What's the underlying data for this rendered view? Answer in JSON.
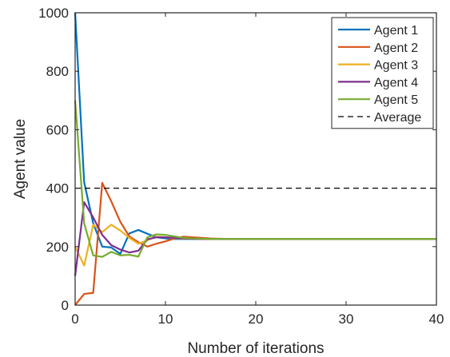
{
  "chart_data": {
    "type": "line",
    "title": "",
    "xlabel": "Number of iterations",
    "ylabel": "Agent value",
    "xlim": [
      0,
      40
    ],
    "ylim": [
      0,
      1000
    ],
    "xticks": [
      0,
      10,
      20,
      30,
      40
    ],
    "yticks": [
      0,
      200,
      400,
      600,
      800,
      1000
    ],
    "xtick_labels": [
      "0",
      "10",
      "20",
      "30",
      "40"
    ],
    "ytick_labels": [
      "0",
      "200",
      "400",
      "600",
      "800",
      "1000"
    ],
    "grid": false,
    "box": true,
    "legend_position": "top-right",
    "x": [
      0,
      1,
      2,
      3,
      4,
      5,
      6,
      7,
      8,
      9,
      10,
      11,
      12,
      13,
      14,
      15,
      16,
      17,
      18,
      19,
      20,
      21,
      22,
      23,
      24,
      25,
      26,
      27,
      28,
      29,
      30,
      31,
      32,
      33,
      34,
      35,
      36,
      37,
      38,
      39,
      40
    ],
    "series": [
      {
        "name": "Agent 1",
        "color": "#0072BD",
        "style": "solid",
        "values": [
          1000,
          420,
          280,
          200,
          197,
          175,
          245,
          257,
          244,
          232,
          228,
          226,
          226,
          226,
          226,
          226,
          226,
          226,
          226,
          226,
          226,
          226,
          226,
          226,
          226,
          226,
          226,
          226,
          226,
          226,
          226,
          226,
          226,
          226,
          226,
          226,
          226,
          226,
          226,
          226,
          226
        ]
      },
      {
        "name": "Agent 2",
        "color": "#D95319",
        "style": "solid",
        "values": [
          0,
          38,
          42,
          418,
          355,
          285,
          235,
          215,
          200,
          210,
          218,
          228,
          234,
          232,
          230,
          228,
          227,
          226,
          226,
          226,
          226,
          226,
          226,
          226,
          226,
          226,
          226,
          226,
          226,
          226,
          226,
          226,
          226,
          226,
          226,
          226,
          226,
          226,
          226,
          226,
          226
        ]
      },
      {
        "name": "Agent 3",
        "color": "#EDB120",
        "style": "solid",
        "values": [
          200,
          135,
          275,
          250,
          275,
          255,
          230,
          210,
          222,
          234,
          232,
          229,
          227,
          227,
          226,
          226,
          226,
          226,
          226,
          226,
          226,
          226,
          226,
          226,
          226,
          226,
          226,
          226,
          226,
          226,
          226,
          226,
          226,
          226,
          226,
          226,
          226,
          226,
          226,
          226,
          226
        ]
      },
      {
        "name": "Agent 4",
        "color": "#7E2F8E",
        "style": "solid",
        "values": [
          100,
          352,
          300,
          240,
          205,
          190,
          180,
          186,
          225,
          232,
          232,
          230,
          228,
          227,
          226,
          226,
          226,
          226,
          226,
          226,
          226,
          226,
          226,
          226,
          226,
          226,
          226,
          226,
          226,
          226,
          226,
          226,
          226,
          226,
          226,
          226,
          226,
          226,
          226,
          226,
          226
        ]
      },
      {
        "name": "Agent 5",
        "color": "#77AC30",
        "style": "solid",
        "values": [
          700,
          280,
          170,
          165,
          182,
          170,
          172,
          166,
          232,
          242,
          240,
          235,
          230,
          228,
          227,
          226,
          226,
          226,
          226,
          226,
          226,
          226,
          226,
          226,
          226,
          226,
          226,
          226,
          226,
          226,
          226,
          226,
          226,
          226,
          226,
          226,
          226,
          226,
          226,
          226,
          226
        ]
      },
      {
        "name": "Average",
        "color": "#000000",
        "style": "dashed",
        "values": [
          400,
          400,
          400,
          400,
          400,
          400,
          400,
          400,
          400,
          400,
          400,
          400,
          400,
          400,
          400,
          400,
          400,
          400,
          400,
          400,
          400,
          400,
          400,
          400,
          400,
          400,
          400,
          400,
          400,
          400,
          400,
          400,
          400,
          400,
          400,
          400,
          400,
          400,
          400,
          400,
          400
        ]
      }
    ]
  }
}
